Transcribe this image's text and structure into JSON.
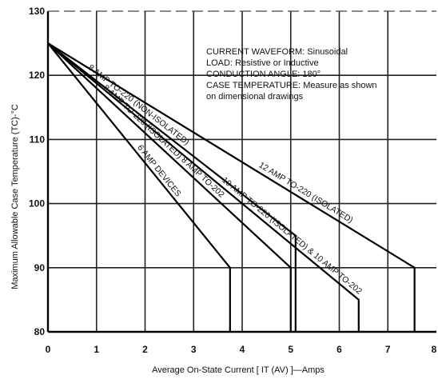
{
  "chart_data": {
    "type": "line",
    "xlabel": "Average On-State Current [ IT (AV) ]—Amps",
    "ylabel": "Maximum Allowable Case Temperature (TC)-°C",
    "xlim": [
      0,
      8
    ],
    "ylim": [
      80,
      130
    ],
    "x_ticks": [
      "0",
      "1",
      "2",
      "3",
      "4",
      "5",
      "6",
      "7",
      "8"
    ],
    "y_ticks": [
      "80",
      "90",
      "100",
      "110",
      "120",
      "130"
    ],
    "grid": true,
    "notes": [
      "CURRENT WAVEFORM: Sinusoidal",
      "LOAD: Resistive or Inductive",
      "CONDUCTION ANGLE: 180°",
      "CASE TEMPERATURE: Measure as shown",
      "on dimensional drawings"
    ],
    "series": [
      {
        "name": "6 AMP DEVICES",
        "x": [
          0,
          3.75,
          3.75
        ],
        "y": [
          125,
          90,
          80
        ]
      },
      {
        "name": "8 AMP TO-220 (ISOLATED) 8 AMP TO-202",
        "x": [
          0,
          5.0,
          5.0
        ],
        "y": [
          125,
          90,
          80
        ]
      },
      {
        "name": "8 AMP TO-220 (NON-ISOLATED)",
        "x": [
          0,
          5.1,
          5.1
        ],
        "y": [
          125,
          95,
          80
        ]
      },
      {
        "name": "10 AMP TO-220 (ISOLATED) & 10 AMP TO-202",
        "x": [
          0,
          6.4,
          6.4
        ],
        "y": [
          125,
          85,
          80
        ]
      },
      {
        "name": "12 AMP TO-220 (ISOLATED)",
        "x": [
          0,
          7.55,
          7.55
        ],
        "y": [
          125,
          90,
          80
        ]
      }
    ]
  }
}
